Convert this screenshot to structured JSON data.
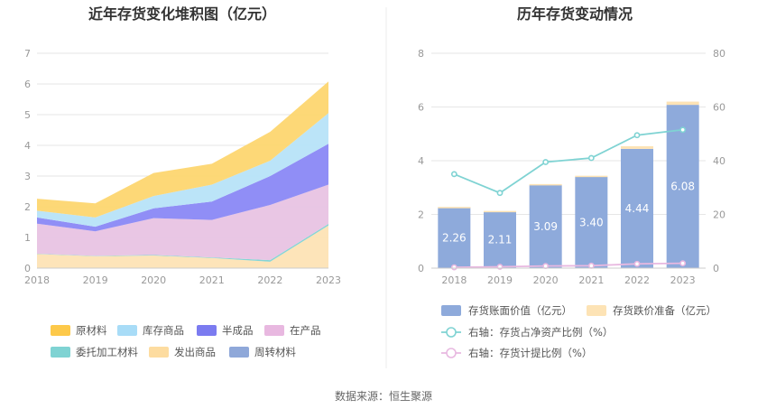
{
  "source_label": "数据来源：恒生聚源",
  "colors": {
    "axis": "#cccccc",
    "grid": "#e6e6e6"
  },
  "chart_data": [
    {
      "type": "area",
      "stacked": true,
      "title": "近年存货变化堆积图（亿元）",
      "categories": [
        "2018",
        "2019",
        "2020",
        "2021",
        "2022",
        "2023"
      ],
      "ylim": [
        0,
        7
      ],
      "yticks": [
        "0",
        "1",
        "2",
        "3",
        "4",
        "5",
        "6",
        "7"
      ],
      "series": [
        {
          "name": "周转材料",
          "color": "#8fa8d9",
          "values": [
            0.01,
            0.01,
            0.01,
            0.01,
            0.01,
            0.01
          ]
        },
        {
          "name": "发出商品",
          "color": "#fde3b5",
          "values": [
            0.45,
            0.38,
            0.4,
            0.32,
            0.2,
            1.38
          ]
        },
        {
          "name": "委托加工材料",
          "color": "#7fd3d3",
          "values": [
            0.01,
            0.01,
            0.02,
            0.02,
            0.05,
            0.05
          ]
        },
        {
          "name": "在产品",
          "color": "#e8c3e3",
          "values": [
            0.98,
            0.8,
            1.2,
            1.22,
            1.8,
            1.28
          ]
        },
        {
          "name": "半成品",
          "color": "#8a88f5",
          "values": [
            0.2,
            0.15,
            0.32,
            0.6,
            0.94,
            1.33
          ]
        },
        {
          "name": "库存商品",
          "color": "#b7e3f8",
          "values": [
            0.22,
            0.3,
            0.4,
            0.55,
            0.5,
            1.0
          ]
        },
        {
          "name": "原材料",
          "color": "#fdd670",
          "values": [
            0.39,
            0.46,
            0.75,
            0.68,
            0.94,
            1.03
          ]
        }
      ],
      "legend": [
        {
          "name": "原材料",
          "color": "#fdc94a"
        },
        {
          "name": "库存商品",
          "color": "#a8dcf7"
        },
        {
          "name": "半成品",
          "color": "#7b7bf0"
        },
        {
          "name": "在产品",
          "color": "#e8b8e0"
        },
        {
          "name": "委托加工材料",
          "color": "#7fd3d3"
        },
        {
          "name": "发出商品",
          "color": "#fddca0"
        },
        {
          "name": "周转材料",
          "color": "#8fa8d9"
        }
      ]
    },
    {
      "type": "bar+line",
      "title": "历年存货变动情况",
      "categories": [
        "2018",
        "2019",
        "2020",
        "2021",
        "2022",
        "2023"
      ],
      "ylim_left": [
        0,
        8
      ],
      "yticks_left": [
        "0",
        "2",
        "4",
        "6",
        "8"
      ],
      "ylim_right": [
        0,
        80
      ],
      "yticks_right": [
        "0",
        "20",
        "40",
        "60",
        "80"
      ],
      "bars": {
        "name": "存货账面价值（亿元）",
        "color": "#8eaadb",
        "values": [
          2.26,
          2.11,
          3.09,
          3.4,
          4.44,
          6.08
        ],
        "labels": [
          "2.26",
          "2.11",
          "3.09",
          "3.40",
          "4.44",
          "6.08"
        ]
      },
      "bars_top": {
        "name": "存货跌价准备（亿元）",
        "color": "#fde3b5",
        "values": [
          0.02,
          0.02,
          0.04,
          0.04,
          0.1,
          0.12
        ]
      },
      "lines": [
        {
          "name": "右轴：存货占净资产比例（%）",
          "color": "#7fd3d3",
          "values": [
            35,
            28,
            39.5,
            41,
            49.5,
            51.5
          ]
        },
        {
          "name": "右轴：存货计提比例（%）",
          "color": "#e8b8e0",
          "values": [
            0.3,
            0.5,
            0.8,
            0.9,
            1.6,
            1.8
          ]
        }
      ]
    }
  ]
}
